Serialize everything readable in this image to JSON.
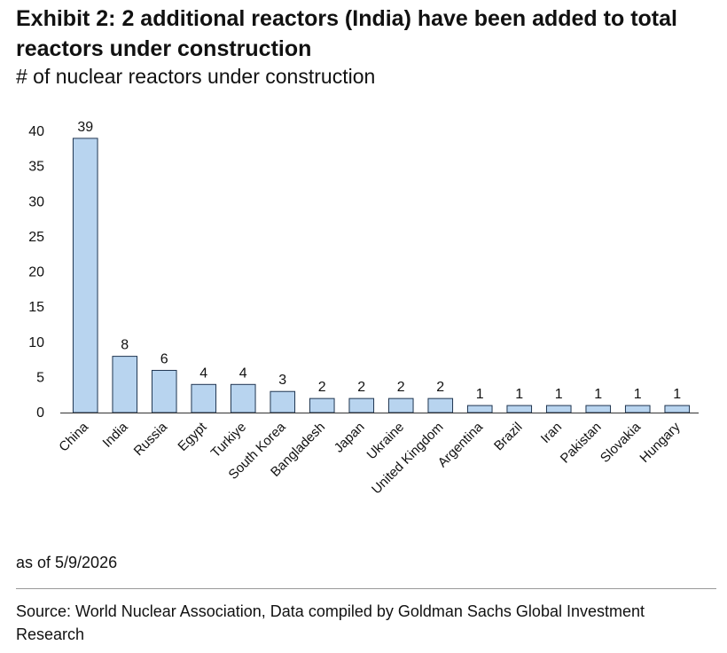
{
  "header": {
    "title": "Exhibit 2: 2 additional reactors (India) have been added to total reactors under construction",
    "subtitle": "# of nuclear reactors under construction"
  },
  "footer": {
    "as_of": "as of 5/9/2026",
    "source": "Source: World Nuclear Association, Data compiled by Goldman Sachs Global Investment Research"
  },
  "colors": {
    "bar_fill": "#b8d4ef",
    "bar_stroke": "#1f3550"
  },
  "chart_data": {
    "type": "bar",
    "title": "Exhibit 2: 2 additional reactors (India) have been added to total reactors under construction",
    "subtitle": "# of nuclear reactors under construction",
    "xlabel": "",
    "ylabel": "",
    "ylim": [
      0,
      40
    ],
    "yticks": [
      0,
      5,
      10,
      15,
      20,
      25,
      30,
      35,
      40
    ],
    "grid": false,
    "legend": "none",
    "data_labels": true,
    "categories": [
      "China",
      "India",
      "Russia",
      "Egypt",
      "Turkiye",
      "South Korea",
      "Bangladesh",
      "Japan",
      "Ukraine",
      "United Kingdom",
      "Argentina",
      "Brazil",
      "Iran",
      "Pakistan",
      "Slovakia",
      "Hungary"
    ],
    "values": [
      39,
      8,
      6,
      4,
      4,
      3,
      2,
      2,
      2,
      2,
      1,
      1,
      1,
      1,
      1,
      1
    ]
  }
}
